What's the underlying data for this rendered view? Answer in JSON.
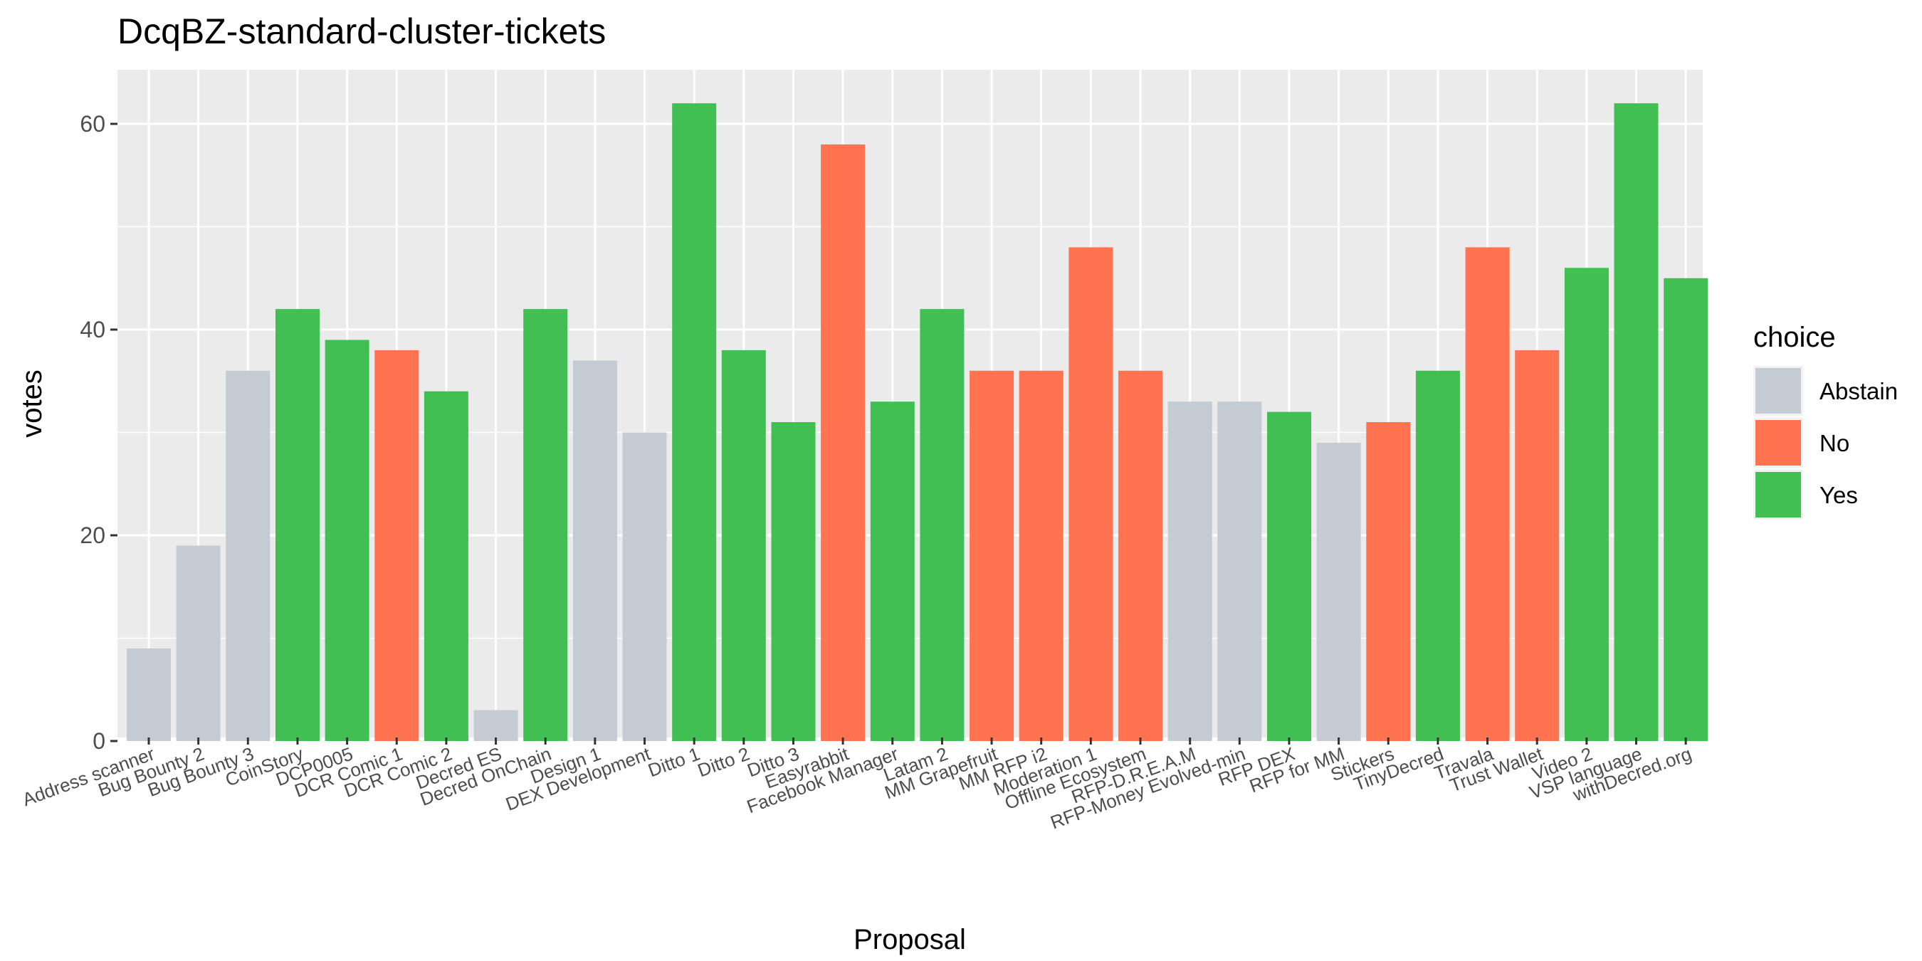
{
  "chart_data": {
    "type": "bar",
    "title": "DcqBZ-standard-cluster-tickets",
    "xlabel": "Proposal",
    "ylabel": "votes",
    "ylim": [
      0,
      65
    ],
    "yticks": [
      0,
      20,
      40,
      60
    ],
    "grid": true,
    "legend": {
      "title": "choice",
      "position": "right",
      "items": [
        {
          "label": "Abstain",
          "color": "#c5cbd3"
        },
        {
          "label": "No",
          "color": "#ff7350"
        },
        {
          "label": "Yes",
          "color": "#41bf53"
        }
      ]
    },
    "categories": [
      "Address scanner",
      "Bug Bounty 2",
      "Bug Bounty 3",
      "CoinStory",
      "DCP0005",
      "DCR Comic 1",
      "DCR Comic 2",
      "Decred ES",
      "Decred OnChain",
      "Design 1",
      "DEX Development",
      "Ditto 1",
      "Ditto 2",
      "Ditto 3",
      "Easyrabbit",
      "Facebook Manager",
      "Latam 2",
      "MM Grapefruit",
      "MM RFP i2",
      "Moderation 1",
      "Offline Ecosystem",
      "RFP-D.R.E.A.M",
      "RFP-Money Evolved-min",
      "RFP DEX",
      "RFP for MM",
      "Stickers",
      "TinyDecred",
      "Travala",
      "Trust Wallet",
      "Video 2",
      "VSP language",
      "withDecred.org"
    ],
    "values": [
      9,
      19,
      36,
      42,
      39,
      38,
      34,
      3,
      42,
      37,
      30,
      62,
      38,
      31,
      58,
      33,
      42,
      36,
      36,
      48,
      36,
      33,
      33,
      32,
      29,
      31,
      36,
      48,
      38,
      46,
      62,
      45
    ],
    "choices": [
      "Abstain",
      "Abstain",
      "Abstain",
      "Yes",
      "Yes",
      "No",
      "Yes",
      "Abstain",
      "Yes",
      "Abstain",
      "Abstain",
      "Yes",
      "Yes",
      "Yes",
      "No",
      "Yes",
      "Yes",
      "No",
      "No",
      "No",
      "No",
      "Abstain",
      "Abstain",
      "Yes",
      "Abstain",
      "No",
      "Yes",
      "No",
      "No",
      "Yes",
      "Yes",
      "Yes"
    ]
  }
}
